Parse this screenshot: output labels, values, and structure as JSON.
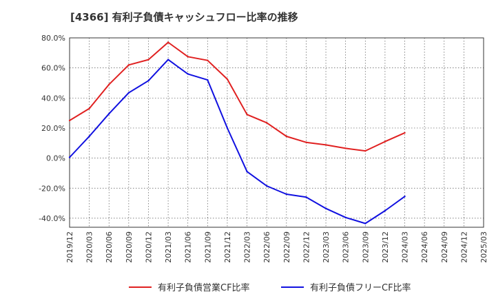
{
  "chart_data": {
    "type": "line",
    "title": "[4366]  有利子負債キャッシュフロー比率の推移",
    "xlabel": "",
    "ylabel": "",
    "ylim": [
      -46,
      80
    ],
    "yticks": [
      80,
      60,
      40,
      20,
      0,
      -20,
      -40
    ],
    "ytick_labels": [
      "80.0%",
      "60.0%",
      "40.0%",
      "20.0%",
      "0.0%",
      "-20.0%",
      "-40.0%"
    ],
    "x": [
      "2019/12",
      "2020/03",
      "2020/06",
      "2020/09",
      "2020/12",
      "2021/03",
      "2021/06",
      "2021/09",
      "2021/12",
      "2022/03",
      "2022/06",
      "2022/09",
      "2022/12",
      "2023/03",
      "2023/06",
      "2023/09",
      "2023/12",
      "2024/03",
      "2024/06",
      "2024/09",
      "2024/12",
      "2025/03"
    ],
    "grid": true,
    "legend_position": "bottom",
    "series": [
      {
        "name": "有利子負債営業CF比率",
        "color": "#e02020",
        "values": [
          25,
          33,
          49,
          62,
          65.5,
          77,
          67.5,
          65,
          52.5,
          29,
          23.5,
          14.5,
          10.5,
          8.8,
          6.5,
          4.8,
          11,
          16.8,
          null,
          null,
          null,
          null
        ]
      },
      {
        "name": "有利子負債フリーCF比率",
        "color": "#1010e0",
        "values": [
          0.5,
          14.5,
          29.5,
          43.5,
          51.5,
          65.5,
          56,
          52,
          20,
          -9,
          -18.5,
          -24,
          -26,
          -33.5,
          -39.5,
          -43.5,
          -35,
          -25.5,
          null,
          null,
          null,
          null
        ]
      }
    ]
  }
}
